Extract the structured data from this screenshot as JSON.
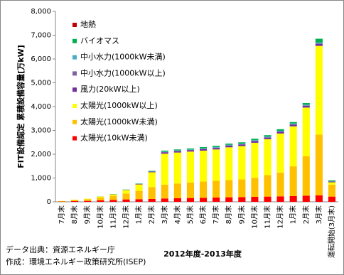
{
  "chart_data": {
    "type": "stacked-bar",
    "y_label": "FIT設備認定 累積設備容量[万kW]",
    "x_label": "2012年度-2013年度",
    "notes": [
      "データ出典：資源エネルギー庁",
      "作成：環境エネルギー政策研究所(ISEP)"
    ],
    "categories": [
      "7月末",
      "8月末",
      "9月末",
      "10月末",
      "11月末",
      "12月末",
      "1月末",
      "2月末",
      "3月末",
      "4月末",
      "5月末",
      "6月末",
      "7月末",
      "8月末",
      "9月末",
      "10月末",
      "11月末",
      "12月末",
      "1月末",
      "2月末",
      "3月末",
      "運転開始(3月末)"
    ],
    "series": [
      {
        "name": "太陽光(10kW未満)",
        "color": "#ff0000",
        "values": [
          10,
          30,
          40,
          60,
          80,
          100,
          110,
          120,
          140,
          150,
          160,
          170,
          180,
          190,
          200,
          210,
          220,
          230,
          240,
          260,
          270,
          220
        ]
      },
      {
        "name": "太陽光(1000kW未満)",
        "color": "#ffc000",
        "values": [
          20,
          50,
          70,
          120,
          170,
          250,
          350,
          500,
          580,
          620,
          650,
          680,
          700,
          720,
          740,
          800,
          900,
          1000,
          1250,
          1650,
          2550,
          500
        ]
      },
      {
        "name": "太陽光(1000kW以上)",
        "color": "#ffff00",
        "values": [
          5,
          10,
          20,
          40,
          60,
          140,
          270,
          620,
          1300,
          1300,
          1300,
          1300,
          1320,
          1380,
          1400,
          1470,
          1510,
          1640,
          1680,
          2050,
          3730,
          100
        ]
      },
      {
        "name": "風力(20kW以上)",
        "color": "#7030a0",
        "values": [
          0,
          0,
          0,
          0,
          5,
          10,
          20,
          30,
          60,
          60,
          60,
          65,
          65,
          70,
          70,
          70,
          70,
          75,
          80,
          80,
          90,
          30
        ]
      },
      {
        "name": "中小水力(1000kW以上)",
        "color": "#8064a2",
        "values": [
          0,
          0,
          0,
          0,
          0,
          0,
          0,
          0,
          10,
          10,
          10,
          10,
          10,
          10,
          10,
          10,
          10,
          10,
          10,
          10,
          10,
          5
        ]
      },
      {
        "name": "中小水力(1000kW未満)",
        "color": "#4bacc6",
        "values": [
          0,
          0,
          0,
          0,
          0,
          5,
          5,
          10,
          20,
          20,
          20,
          25,
          25,
          25,
          25,
          30,
          30,
          30,
          30,
          30,
          40,
          5
        ]
      },
      {
        "name": "バイオマス",
        "color": "#00b050",
        "values": [
          0,
          0,
          0,
          5,
          10,
          10,
          15,
          20,
          40,
          40,
          40,
          50,
          50,
          50,
          55,
          60,
          60,
          65,
          60,
          70,
          160,
          40
        ]
      },
      {
        "name": "地熱",
        "color": "#c00000",
        "values": [
          0,
          0,
          0,
          0,
          0,
          0,
          0,
          0,
          0,
          0,
          0,
          0,
          0,
          0,
          0,
          0,
          0,
          0,
          0,
          0,
          0,
          0
        ]
      }
    ],
    "ylim": [
      0,
      8000
    ],
    "yticks": [
      0,
      {
        "value": 1000,
        "label": "1,000"
      },
      {
        "value": 2000,
        "label": "2,000"
      },
      {
        "value": 3000,
        "label": "3,000"
      },
      {
        "value": 4000,
        "label": "4,000"
      },
      {
        "value": 5000,
        "label": "5,000"
      },
      {
        "value": 6000,
        "label": "6,000"
      },
      {
        "value": 7000,
        "label": "7,000"
      },
      {
        "value": 8000,
        "label": "8,000"
      }
    ],
    "grid": false
  }
}
